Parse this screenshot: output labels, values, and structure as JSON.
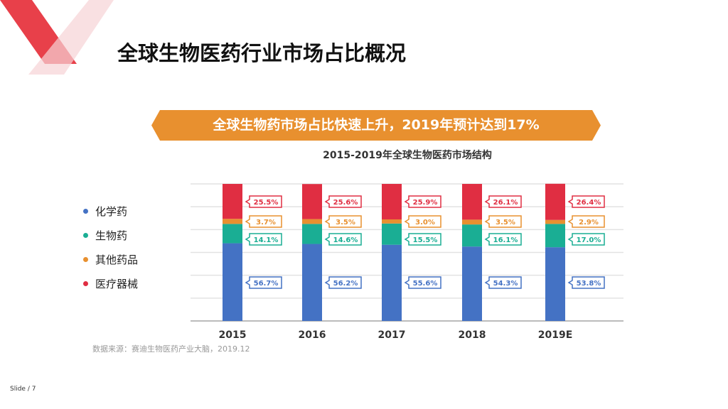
{
  "slide": {
    "title": "全球生物医药行业市场占比概况",
    "banner": "全球生物药市场占比快速上升，2019年预计达到17%",
    "source": "数据来源：赛迪生物医药产业大脑，2019.12",
    "footer": "Slide / 7"
  },
  "colors": {
    "accent": "#E8902F",
    "decor": "#E8404A"
  },
  "chart_data": {
    "type": "bar",
    "stacked": true,
    "title": "2015-2019年全球生物医药市场结构",
    "categories": [
      "2015",
      "2016",
      "2017",
      "2018",
      "2019E"
    ],
    "ylim": [
      0,
      100
    ],
    "grid": true,
    "legend_position": "left",
    "series": [
      {
        "name": "化学药",
        "color": "#4472C4",
        "values": [
          56.7,
          56.2,
          55.6,
          54.3,
          53.8
        ]
      },
      {
        "name": "生物药",
        "color": "#1AAE94",
        "values": [
          14.1,
          14.6,
          15.5,
          16.1,
          17.0
        ]
      },
      {
        "name": "其他药品",
        "color": "#E8902F",
        "values": [
          3.7,
          3.5,
          3.0,
          3.5,
          2.9
        ]
      },
      {
        "name": "医疗器械",
        "color": "#E02E42",
        "values": [
          25.5,
          25.6,
          25.9,
          26.1,
          26.4
        ]
      }
    ]
  }
}
